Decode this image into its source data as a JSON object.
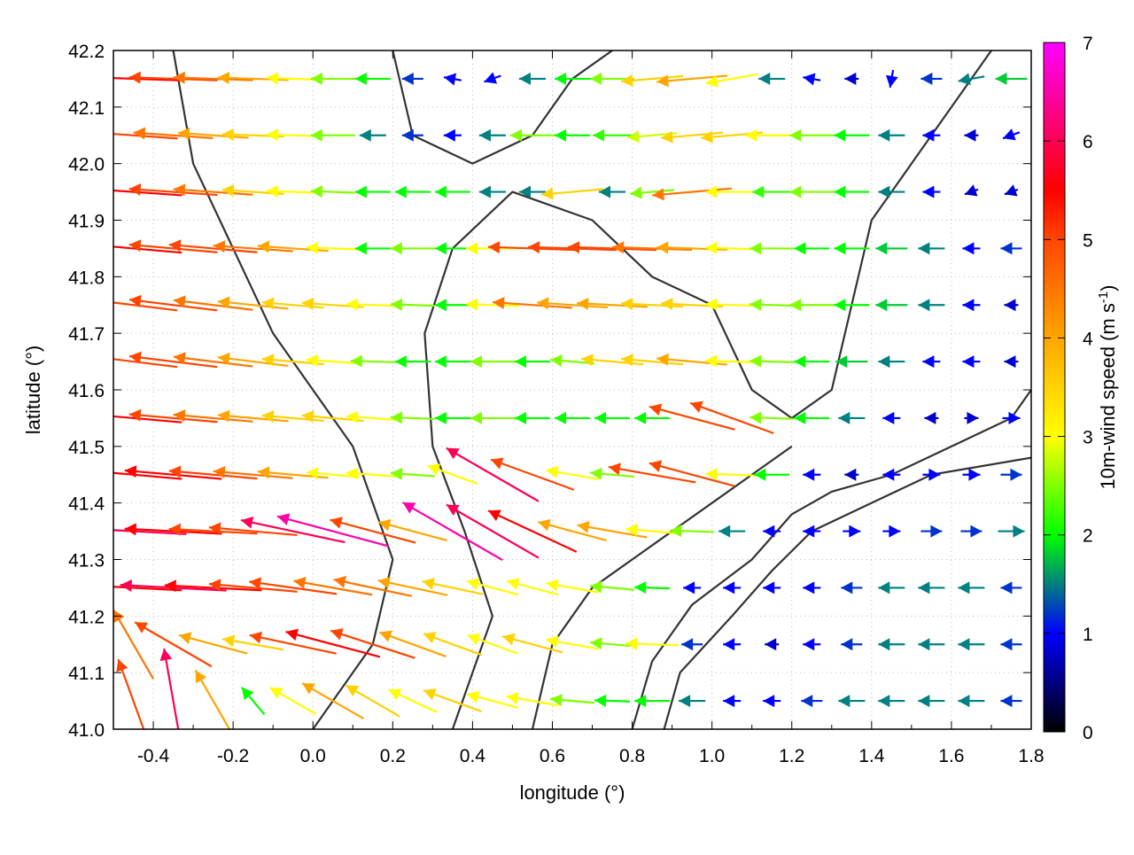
{
  "chart_data": {
    "type": "vector-field",
    "xlabel": "longitude (°)",
    "ylabel": "latitude (°)",
    "colorbar_label_main": "10m-wind speed (m s",
    "colorbar_label_sup": "-1",
    "colorbar_label_close": ")",
    "xlim": [
      -0.5,
      1.8
    ],
    "ylim": [
      41.0,
      42.2
    ],
    "clim": [
      0,
      7
    ],
    "x_ticks": [
      "-0.4",
      "-0.2",
      "0.0",
      "0.2",
      "0.4",
      "0.6",
      "0.8",
      "1.0",
      "1.2",
      "1.4",
      "1.6",
      "1.8"
    ],
    "y_ticks": [
      "41.0",
      "41.1",
      "41.2",
      "41.3",
      "41.4",
      "41.5",
      "41.6",
      "41.7",
      "41.8",
      "41.9",
      "42.0",
      "42.1",
      "42.2"
    ],
    "colorbar_ticks": [
      "0",
      "1",
      "2",
      "3",
      "4",
      "5",
      "6",
      "7"
    ],
    "grid": true,
    "palette": [
      {
        "value": 0,
        "color": "#000000"
      },
      {
        "value": 1,
        "color": "#0000ff"
      },
      {
        "value": 2,
        "color": "#00ff00"
      },
      {
        "value": 3,
        "color": "#ffff00"
      },
      {
        "value": 4,
        "color": "#ffa500"
      },
      {
        "value": 5,
        "color": "#ff4500"
      },
      {
        "value": 5.5,
        "color": "#ff0000"
      },
      {
        "value": 7,
        "color": "#ff00ff"
      }
    ],
    "grid_lon": [
      -0.45,
      -0.35,
      -0.25,
      -0.15,
      -0.05,
      0.05,
      0.15,
      0.25,
      0.35,
      0.45,
      0.55,
      0.65,
      0.75,
      0.85,
      0.95,
      1.05,
      1.15,
      1.25,
      1.35,
      1.45,
      1.55,
      1.65,
      1.75
    ],
    "grid_lat": [
      42.15,
      42.05,
      41.95,
      41.85,
      41.75,
      41.65,
      41.55,
      41.45,
      41.35,
      41.25,
      41.15,
      41.05
    ],
    "speed": [
      [
        5.5,
        5,
        4.5,
        4,
        3,
        2.5,
        2,
        1.2,
        1,
        1,
        1.5,
        2,
        2.5,
        3.5,
        4,
        3,
        1.5,
        1,
        0.8,
        1,
        1.2,
        1.5,
        1.8
      ],
      [
        5,
        4.5,
        4,
        3.5,
        3,
        2.5,
        1.5,
        1.2,
        1,
        1.5,
        2.5,
        2,
        2.2,
        2.8,
        3.5,
        3.5,
        3,
        2.5,
        2,
        1.5,
        1,
        0.8,
        1
      ],
      [
        5.5,
        5,
        4.5,
        3.5,
        3,
        2.5,
        2,
        2,
        2,
        1.5,
        1.5,
        3.5,
        1.5,
        2.5,
        4.5,
        3,
        2.2,
        2.5,
        2,
        1.5,
        1,
        0.8,
        0.8
      ],
      [
        5.5,
        5,
        5,
        4.5,
        4,
        3,
        2,
        2.5,
        2,
        3,
        5,
        5,
        5,
        4.5,
        4,
        3,
        2.5,
        2,
        2,
        1.8,
        1.5,
        1,
        1.2
      ],
      [
        5,
        5,
        4.5,
        4,
        3.5,
        3.5,
        3,
        2.5,
        2,
        3,
        4.5,
        4,
        4,
        3.5,
        3.5,
        3,
        2.5,
        2.5,
        2,
        1.8,
        1.5,
        1,
        0.8
      ],
      [
        5,
        5,
        4.5,
        4,
        3.5,
        3,
        2.5,
        2,
        2,
        2.5,
        2,
        2.5,
        3.5,
        3.5,
        4,
        3,
        2.5,
        2,
        1.8,
        1.5,
        1,
        1,
        0.8
      ],
      [
        5.5,
        5,
        4.5,
        4,
        3.5,
        3.5,
        3,
        2.5,
        2,
        2.5,
        2,
        2,
        2,
        2,
        5,
        5,
        2.5,
        2,
        1.5,
        1,
        0.8,
        0.8,
        1
      ],
      [
        5.5,
        5.5,
        5,
        4.5,
        4,
        3,
        3,
        2.5,
        3,
        6,
        5,
        3,
        2.5,
        5,
        5,
        3,
        2,
        1,
        0.8,
        1,
        1,
        1,
        1.2
      ],
      [
        6,
        5.5,
        5,
        5,
        6,
        6.5,
        5,
        4,
        6.5,
        6,
        5.5,
        4,
        4,
        3,
        2.5,
        1.5,
        1,
        1,
        1,
        1,
        1.2,
        1.2,
        1.5
      ],
      [
        5.5,
        6,
        5.5,
        5,
        5,
        4.5,
        4.5,
        4,
        3.5,
        3,
        3,
        3,
        2.5,
        2,
        1,
        1,
        1,
        1,
        1.2,
        1.5,
        1.5,
        1.5,
        1.2
      ],
      [
        4.5,
        5,
        4,
        3.5,
        5,
        5.5,
        5,
        4,
        3.5,
        3,
        3.5,
        3,
        2.5,
        3,
        1.2,
        1,
        0.8,
        1,
        1.2,
        1.5,
        1.5,
        1.5,
        1.2
      ],
      [
        5,
        6,
        4,
        2,
        3,
        4,
        3.5,
        3,
        3.5,
        3,
        3,
        2.5,
        2,
        2,
        1.5,
        1,
        1,
        1.2,
        1.5,
        1.5,
        1.5,
        1.5,
        1.2
      ]
    ],
    "direction_deg": [
      [
        178,
        178,
        178,
        178,
        178,
        180,
        180,
        180,
        170,
        200,
        180,
        180,
        180,
        185,
        185,
        190,
        180,
        170,
        180,
        260,
        180,
        190,
        180
      ],
      [
        176,
        176,
        176,
        178,
        178,
        180,
        180,
        180,
        180,
        180,
        180,
        180,
        180,
        185,
        185,
        185,
        180,
        180,
        180,
        180,
        180,
        180,
        200
      ],
      [
        176,
        176,
        176,
        176,
        178,
        178,
        180,
        180,
        180,
        180,
        180,
        185,
        180,
        185,
        185,
        180,
        180,
        180,
        180,
        180,
        180,
        200,
        200
      ],
      [
        175,
        175,
        175,
        176,
        176,
        178,
        180,
        180,
        180,
        180,
        178,
        178,
        178,
        178,
        178,
        178,
        180,
        180,
        180,
        180,
        180,
        180,
        180
      ],
      [
        173,
        173,
        173,
        174,
        175,
        176,
        178,
        178,
        180,
        178,
        176,
        176,
        177,
        177,
        177,
        178,
        178,
        180,
        180,
        180,
        180,
        180,
        180
      ],
      [
        173,
        173,
        173,
        173,
        175,
        176,
        178,
        180,
        180,
        180,
        180,
        175,
        175,
        175,
        175,
        178,
        178,
        180,
        180,
        180,
        180,
        180,
        180
      ],
      [
        175,
        175,
        175,
        175,
        175,
        175,
        176,
        178,
        180,
        180,
        180,
        180,
        180,
        180,
        165,
        160,
        178,
        180,
        180,
        180,
        180,
        0,
        0
      ],
      [
        175,
        175,
        175,
        175,
        175,
        175,
        176,
        176,
        160,
        150,
        160,
        170,
        175,
        170,
        165,
        178,
        180,
        180,
        180,
        180,
        0,
        0,
        0
      ],
      [
        177,
        177,
        177,
        175,
        168,
        165,
        165,
        165,
        150,
        150,
        155,
        165,
        170,
        175,
        178,
        180,
        180,
        180,
        0,
        0,
        0,
        0,
        0
      ],
      [
        177,
        177,
        177,
        175,
        172,
        170,
        168,
        168,
        168,
        165,
        165,
        170,
        175,
        178,
        180,
        180,
        180,
        180,
        180,
        180,
        180,
        180,
        180
      ],
      [
        120,
        150,
        165,
        170,
        168,
        165,
        162,
        160,
        160,
        160,
        165,
        170,
        175,
        178,
        180,
        180,
        180,
        180,
        180,
        180,
        180,
        180,
        180
      ],
      [
        110,
        100,
        120,
        130,
        150,
        150,
        150,
        155,
        160,
        165,
        170,
        175,
        178,
        180,
        180,
        180,
        180,
        180,
        180,
        180,
        180,
        180,
        180
      ]
    ],
    "contours": [
      [
        [
          0.8,
          41.0
        ],
        [
          0.85,
          41.12
        ],
        [
          0.95,
          41.22
        ],
        [
          1.1,
          41.3
        ],
        [
          1.2,
          41.38
        ],
        [
          1.3,
          41.42
        ],
        [
          1.45,
          41.45
        ],
        [
          1.6,
          41.5
        ],
        [
          1.75,
          41.55
        ],
        [
          1.8,
          41.6
        ]
      ],
      [
        [
          0.88,
          41.0
        ],
        [
          0.92,
          41.1
        ],
        [
          1.05,
          41.2
        ],
        [
          1.15,
          41.28
        ],
        [
          1.25,
          41.35
        ],
        [
          1.4,
          41.4
        ],
        [
          1.55,
          41.45
        ],
        [
          1.8,
          41.48
        ]
      ],
      [
        [
          0.35,
          41.0
        ],
        [
          0.45,
          41.2
        ],
        [
          0.38,
          41.35
        ],
        [
          0.3,
          41.5
        ],
        [
          0.28,
          41.7
        ],
        [
          0.35,
          41.85
        ],
        [
          0.5,
          41.95
        ],
        [
          0.7,
          41.9
        ],
        [
          0.85,
          41.8
        ],
        [
          1.0,
          41.75
        ],
        [
          1.1,
          41.6
        ],
        [
          1.2,
          41.55
        ],
        [
          1.3,
          41.6
        ],
        [
          1.35,
          41.75
        ],
        [
          1.4,
          41.9
        ],
        [
          1.5,
          42.0
        ],
        [
          1.6,
          42.1
        ],
        [
          1.7,
          42.2
        ]
      ],
      [
        [
          -0.35,
          42.2
        ],
        [
          -0.3,
          42.0
        ],
        [
          -0.2,
          41.85
        ],
        [
          -0.1,
          41.7
        ],
        [
          0.0,
          41.6
        ],
        [
          0.1,
          41.5
        ],
        [
          0.2,
          41.3
        ],
        [
          0.15,
          41.15
        ],
        [
          0.05,
          41.05
        ],
        [
          0.0,
          41.0
        ]
      ],
      [
        [
          0.55,
          41.0
        ],
        [
          0.6,
          41.15
        ],
        [
          0.7,
          41.25
        ],
        [
          0.8,
          41.3
        ],
        [
          0.9,
          41.35
        ],
        [
          1.0,
          41.4
        ],
        [
          1.1,
          41.45
        ],
        [
          1.2,
          41.5
        ]
      ],
      [
        [
          0.2,
          42.2
        ],
        [
          0.25,
          42.05
        ],
        [
          0.4,
          42.0
        ],
        [
          0.55,
          42.05
        ],
        [
          0.65,
          42.15
        ],
        [
          0.75,
          42.2
        ]
      ]
    ]
  }
}
